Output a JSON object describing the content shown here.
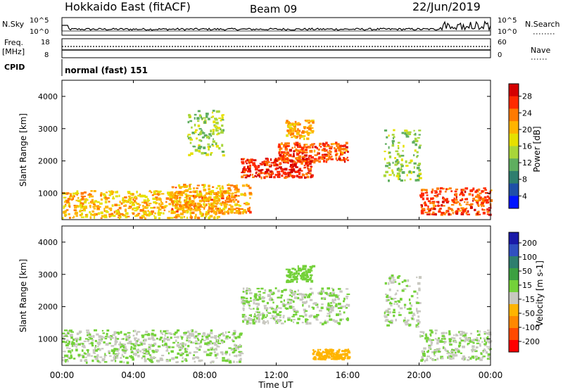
{
  "header": {
    "title": "Hokkaido East (fitACF)",
    "beam": "Beam 09",
    "date": "22/Jun/2019"
  },
  "noise_panel": {
    "left_label": "N.Sky",
    "right_label": "N.Search",
    "left_ticks": [
      "10^5",
      "10^0"
    ],
    "right_ticks": [
      "10^5",
      "10^0"
    ]
  },
  "freq_panel": {
    "left_label_line1": "Freq.",
    "left_label_line2": "[MHz]",
    "right_label": "Nave",
    "left_ticks": [
      "18",
      "8"
    ],
    "right_ticks": [
      "60",
      "0"
    ]
  },
  "cpid_panel": {
    "label": "CPID",
    "value": "normal (fast) 151"
  },
  "power_panel": {
    "ylabel": "Slant Range [km]",
    "colorbar_label": "Power [dB]",
    "colorbar_ticks": [
      "28",
      "24",
      "20",
      "16",
      "12",
      "8",
      "4"
    ],
    "colorbar_colors": [
      "#d40000",
      "#ff2a00",
      "#ff7a00",
      "#ffb400",
      "#e6e000",
      "#a8d63a",
      "#5fae5f",
      "#2e7e6e",
      "#1f4fa8",
      "#0014ff"
    ]
  },
  "velocity_panel": {
    "ylabel": "Slant Range [km]",
    "colorbar_label": "Velocity [m s-1]",
    "colorbar_ticks": [
      "200",
      "100",
      "50",
      "15",
      "-15",
      "-50",
      "-100",
      "-200"
    ],
    "colorbar_colors": [
      "#1a1aa8",
      "#3050c0",
      "#2e7e6e",
      "#3ca040",
      "#74d13a",
      "#c8c8c0",
      "#ffb400",
      "#ff8800",
      "#ff4a00",
      "#ff0000"
    ]
  },
  "x_axis": {
    "label": "Time UT",
    "ticks": [
      "00:00",
      "04:00",
      "08:00",
      "12:00",
      "16:00",
      "20:00",
      "00:00"
    ]
  },
  "chart_data": [
    {
      "type": "heatmap",
      "name": "Power",
      "xlabel": "Time UT",
      "ylabel": "Slant Range [km]",
      "x_range_hours": [
        0,
        24
      ],
      "y_range_km": [
        180,
        4500
      ],
      "y_ticks": [
        1000,
        2000,
        3000,
        4000
      ],
      "color_range_db": [
        0,
        32
      ],
      "regions": [
        {
          "t0": 0.0,
          "t1": 9.5,
          "r0": 250,
          "r1": 1100,
          "level": 20
        },
        {
          "t0": 6.0,
          "t1": 10.5,
          "r0": 400,
          "r1": 1300,
          "level": 22
        },
        {
          "t0": 10.0,
          "t1": 14.0,
          "r0": 1500,
          "r1": 2100,
          "level": 28
        },
        {
          "t0": 12.0,
          "t1": 16.0,
          "r0": 2000,
          "r1": 2600,
          "level": 26
        },
        {
          "t0": 12.5,
          "t1": 14.0,
          "r0": 2700,
          "r1": 3300,
          "level": 22
        },
        {
          "t0": 7.0,
          "t1": 9.0,
          "r0": 2200,
          "r1": 3600,
          "level": 14
        },
        {
          "t0": 18.0,
          "t1": 20.0,
          "r0": 1400,
          "r1": 3000,
          "level": 14
        },
        {
          "t0": 20.0,
          "t1": 24.0,
          "r0": 350,
          "r1": 1200,
          "level": 26
        }
      ]
    },
    {
      "type": "heatmap",
      "name": "Velocity",
      "xlabel": "Time UT",
      "ylabel": "Slant Range [km]",
      "x_range_hours": [
        0,
        24
      ],
      "y_range_km": [
        180,
        4500
      ],
      "y_ticks": [
        1000,
        2000,
        3000,
        4000
      ],
      "color_range_ms": [
        -250,
        250
      ],
      "regions": [
        {
          "t0": 0.0,
          "t1": 10.0,
          "r0": 300,
          "r1": 1300,
          "level": 0
        },
        {
          "t0": 10.0,
          "t1": 16.0,
          "r0": 1500,
          "r1": 2600,
          "level": 0
        },
        {
          "t0": 14.0,
          "t1": 16.0,
          "r0": 400,
          "r1": 700,
          "level": -60
        },
        {
          "t0": 12.5,
          "t1": 14.0,
          "r0": 2800,
          "r1": 3300,
          "level": 30
        },
        {
          "t0": 18.0,
          "t1": 20.0,
          "r0": 1400,
          "r1": 3000,
          "level": 0
        },
        {
          "t0": 20.0,
          "t1": 24.0,
          "r0": 350,
          "r1": 1300,
          "level": 0
        }
      ]
    }
  ]
}
